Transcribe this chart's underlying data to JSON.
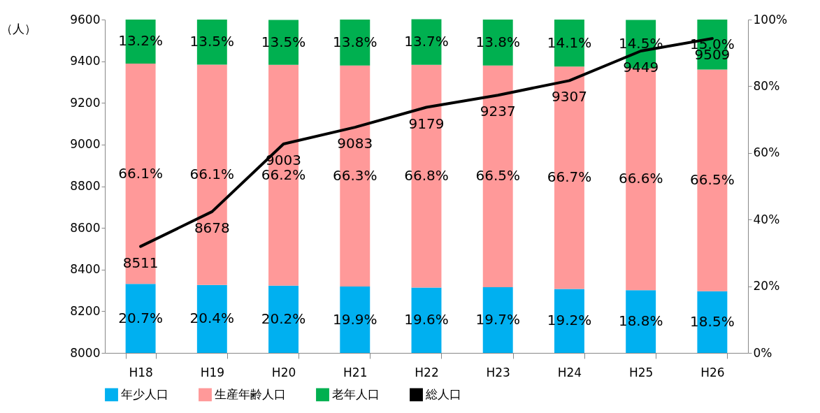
{
  "chart_data": {
    "type": "bar",
    "stacked": true,
    "data_labels": true,
    "legend": "bottom",
    "grid": false,
    "ylabel": "（人）",
    "categories": [
      "H18",
      "H19",
      "H20",
      "H21",
      "H22",
      "H23",
      "H24",
      "H25",
      "H26"
    ],
    "ylim": [
      8000,
      9600
    ],
    "yticks": [
      8000,
      8200,
      8400,
      8600,
      8800,
      9000,
      9200,
      9400,
      9600
    ],
    "y2lim": [
      0,
      100
    ],
    "y2ticks": [
      {
        "value": 0,
        "label": "0%"
      },
      {
        "value": 20,
        "label": "20%"
      },
      {
        "value": 40,
        "label": "40%"
      },
      {
        "value": 60,
        "label": "60%"
      },
      {
        "value": 80,
        "label": "80%"
      },
      {
        "value": 100,
        "label": "100%"
      }
    ],
    "series": [
      {
        "name": "年少人口",
        "color": "#00b0f0",
        "axis": "y2",
        "value_labels": [
          "20.7%",
          "20.4%",
          "20.2%",
          "19.9%",
          "19.6%",
          "19.7%",
          "19.2%",
          "18.8%",
          "18.5%"
        ],
        "values": [
          20.7,
          20.4,
          20.2,
          19.9,
          19.6,
          19.7,
          19.2,
          18.8,
          18.5
        ]
      },
      {
        "name": "生産年齢人口",
        "color": "#ff9999",
        "axis": "y2",
        "value_labels": [
          "66.1%",
          "66.1%",
          "66.2%",
          "66.3%",
          "66.8%",
          "66.5%",
          "66.7%",
          "66.6%",
          "66.5%"
        ],
        "values": [
          66.1,
          66.1,
          66.2,
          66.3,
          66.8,
          66.5,
          66.7,
          66.6,
          66.5
        ]
      },
      {
        "name": "老年人口",
        "color": "#00b050",
        "axis": "y2",
        "value_labels": [
          "13.2%",
          "13.5%",
          "13.5%",
          "13.8%",
          "13.7%",
          "13.8%",
          "14.1%",
          "14.5%",
          "15.0%"
        ],
        "values": [
          13.2,
          13.5,
          13.5,
          13.8,
          13.7,
          13.8,
          14.1,
          14.5,
          15.0
        ]
      },
      {
        "name": "総人口",
        "type": "line",
        "color": "#000000",
        "axis": "y",
        "marker": "none",
        "line_style": "solid",
        "values": [
          8511,
          8678,
          9003,
          9083,
          9179,
          9237,
          9307,
          9449,
          9509
        ]
      }
    ]
  }
}
